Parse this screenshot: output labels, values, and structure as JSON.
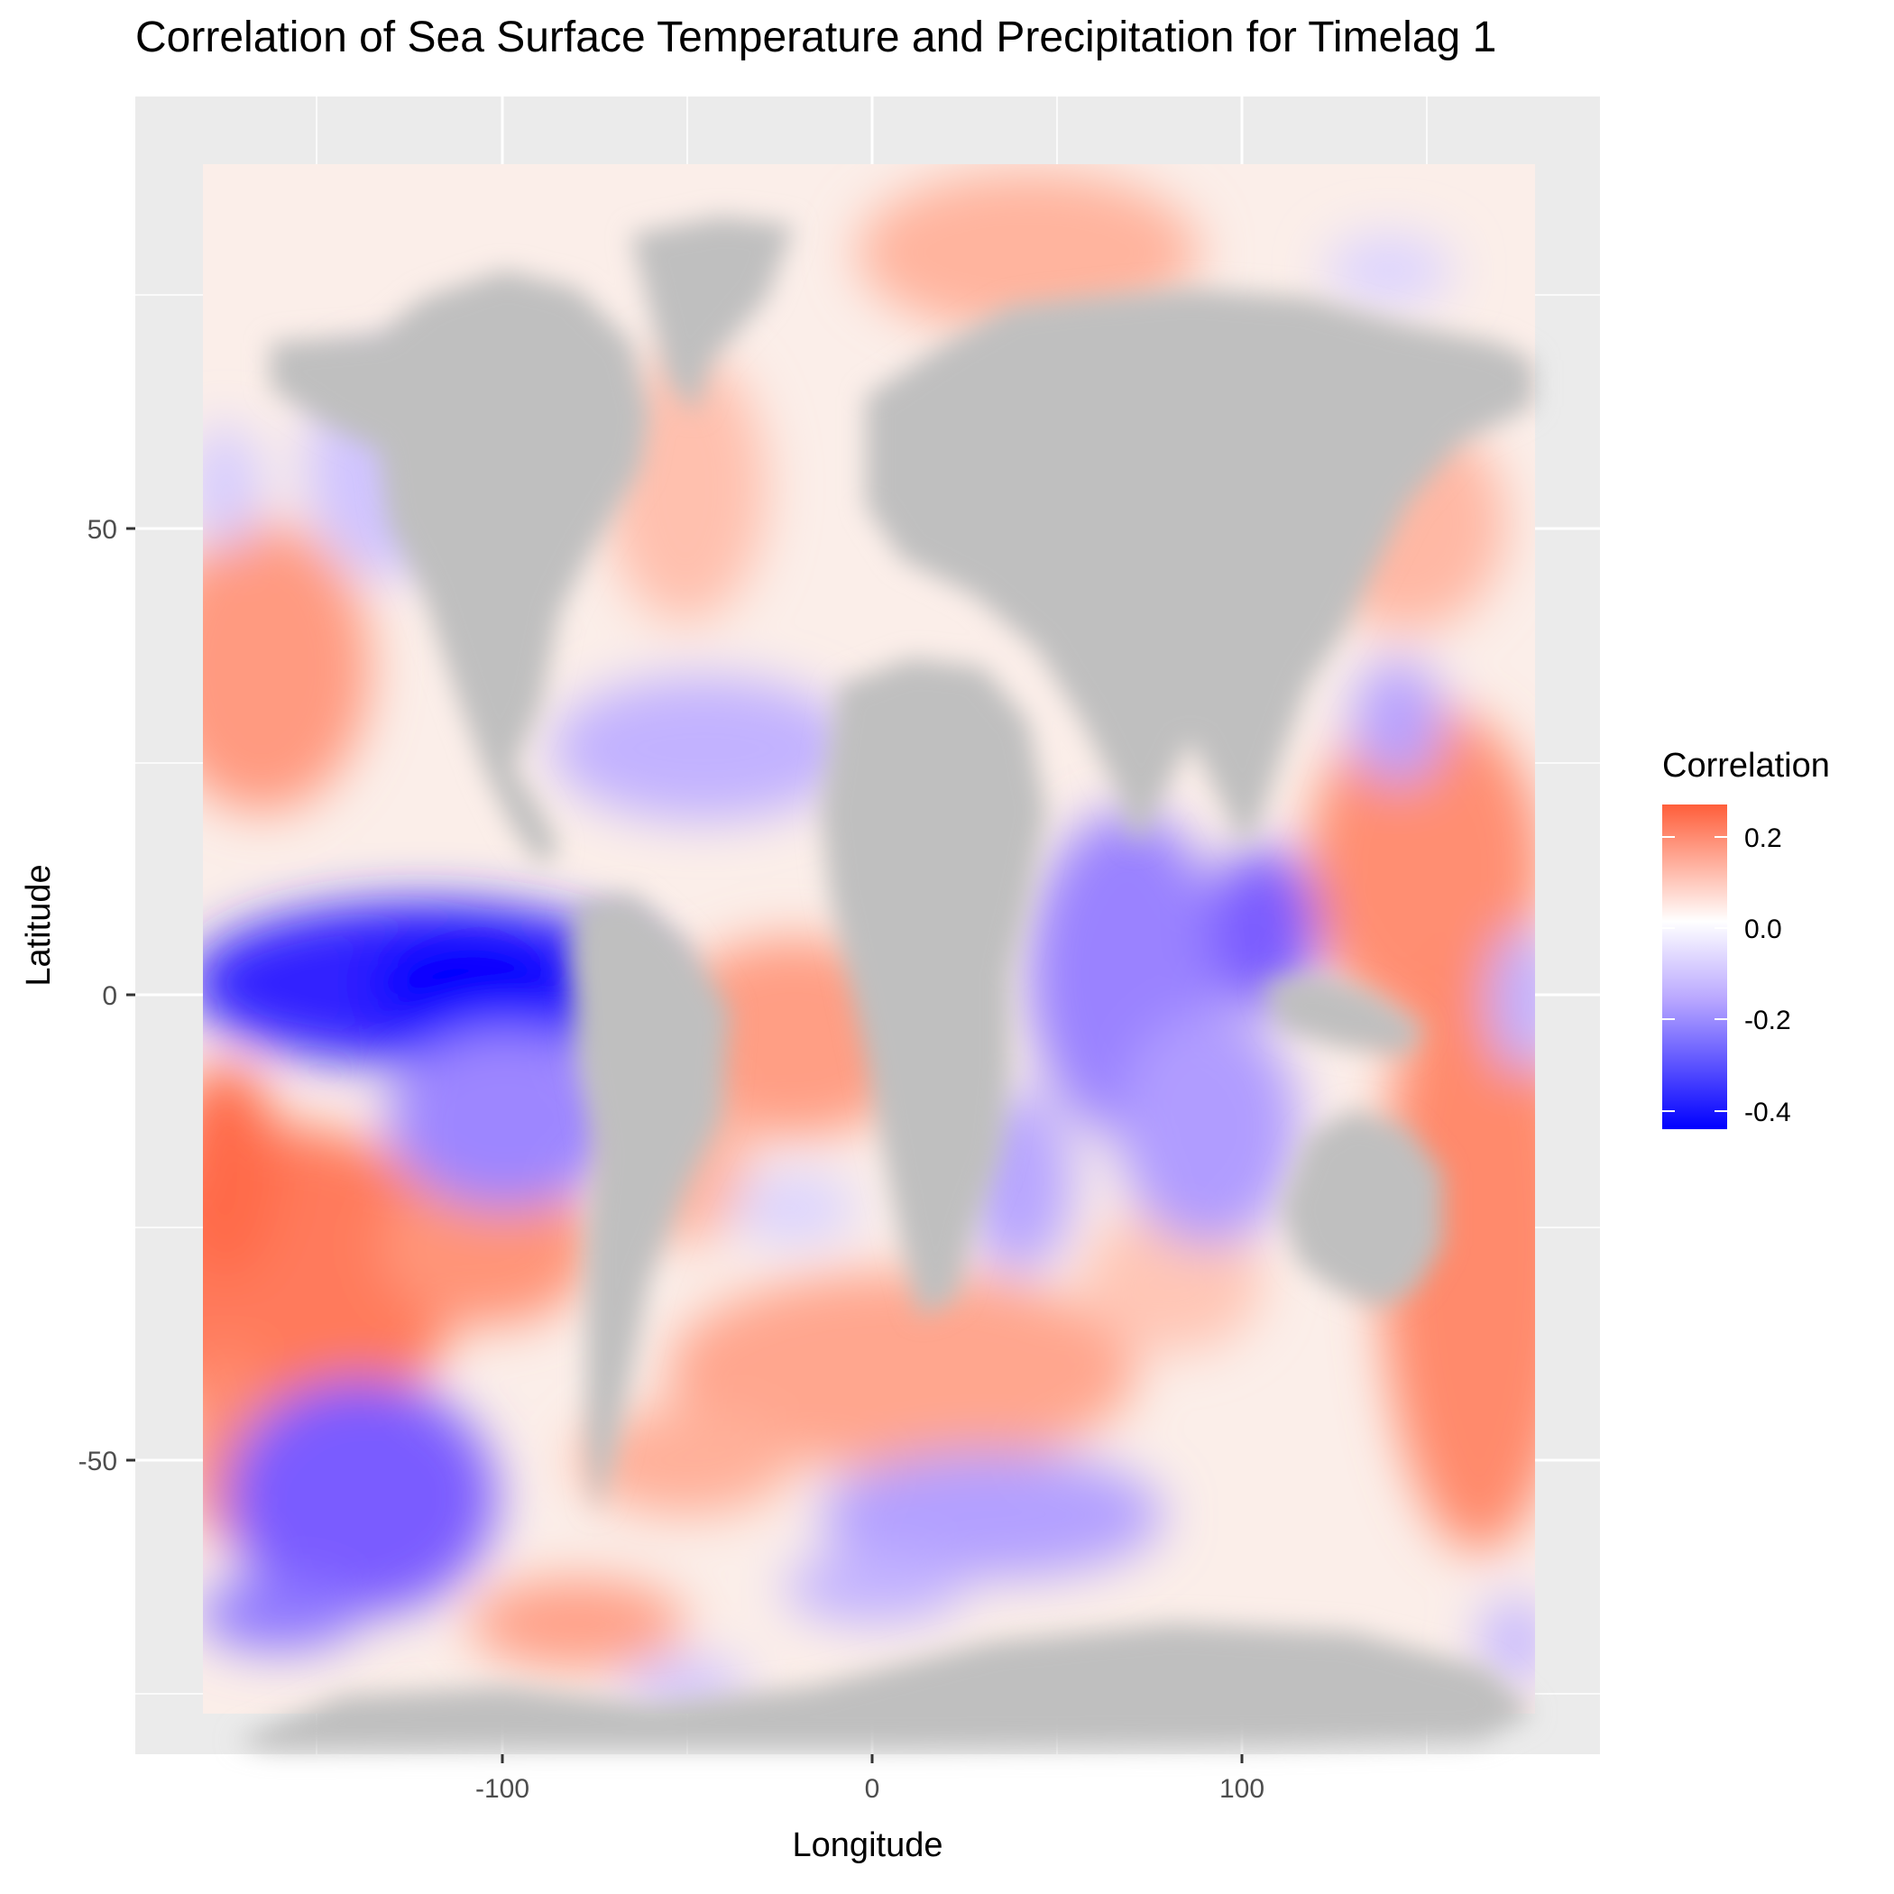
{
  "title": "Correlation of Sea Surface Temperature and Precipitation for Timelag 1",
  "legend_title": "Correlation",
  "chart_data": {
    "type": "heatmap",
    "title": "Correlation of Sea Surface Temperature and Precipitation for Timelag 1",
    "xlabel": "Longitude",
    "ylabel": "Latitude",
    "xlim": [
      -180,
      180
    ],
    "ylim": [
      -90,
      90
    ],
    "x_ticks": [
      -100,
      0,
      100
    ],
    "y_ticks": [
      50,
      0,
      -50
    ],
    "grid": true,
    "legend_position": "right",
    "colorbar": {
      "label": "Correlation",
      "ticks": [
        0.2,
        0.0,
        -0.2,
        -0.4
      ],
      "range": [
        -0.47,
        0.27
      ],
      "low_color": "#0000ff",
      "mid_color": "#ffffff",
      "high_color": "#ff5e3a",
      "land_color": "#bfbfbf",
      "panel_color": "#ebebeb"
    },
    "notable_regions": [
      {
        "lon": -110,
        "lat": 2,
        "value": -0.46
      },
      {
        "lon": -170,
        "lat": 36,
        "value": 0.13
      },
      {
        "lon": -170,
        "lat": -22,
        "value": 0.22
      },
      {
        "lon": -135,
        "lat": -54,
        "value": -0.27
      },
      {
        "lon": -20,
        "lat": -3,
        "value": 0.15
      },
      {
        "lon": 70,
        "lat": -5,
        "value": -0.24
      },
      {
        "lon": 145,
        "lat": 12,
        "value": 0.17
      },
      {
        "lon": 165,
        "lat": -48,
        "value": 0.2
      },
      {
        "lon": 140,
        "lat": 30,
        "value": -0.15
      }
    ]
  },
  "axis": {
    "xlabel": "Longitude",
    "ylabel": "Latitude",
    "x_tick_labels": [
      "-100",
      "0",
      "100"
    ],
    "y_tick_labels": [
      "50",
      "0",
      "-50"
    ]
  },
  "legend_tick_labels": [
    "0.2",
    "0.0",
    "-0.2",
    "-0.4"
  ]
}
